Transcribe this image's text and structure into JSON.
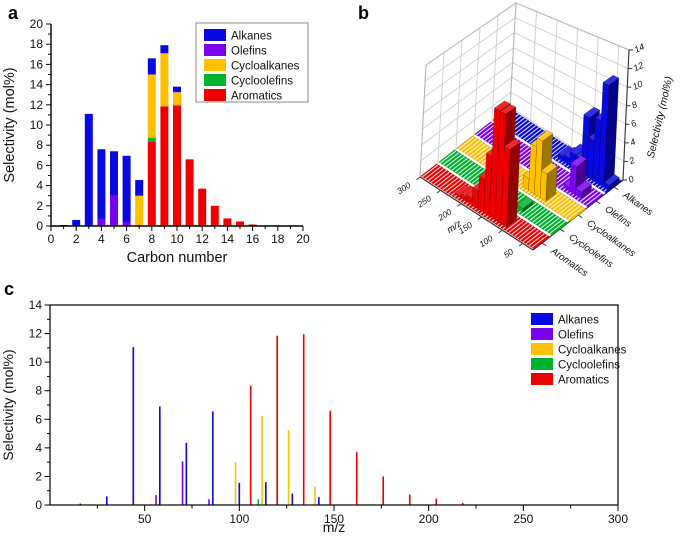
{
  "figure": {
    "panel_labels": [
      "a",
      "b",
      "c"
    ],
    "background": "#ffffff"
  },
  "colors": {
    "Alkanes": "#0808e0",
    "Olefins": "#7a00ee",
    "Cycloalkanes": "#ffc000",
    "Cycloolefins": "#00b22d",
    "Aromatics": "#ee0000"
  },
  "legend": {
    "items": [
      {
        "label": "Alkanes",
        "color": "#0808e0"
      },
      {
        "label": "Olefins",
        "color": "#7a00ee"
      },
      {
        "label": "Cycloalkanes",
        "color": "#ffc000"
      },
      {
        "label": "Cycloolefins",
        "color": "#00b22d"
      },
      {
        "label": "Aromatics",
        "color": "#ee0000"
      }
    ]
  },
  "chart_data": [
    {
      "id": "a",
      "type": "bar",
      "stacked": true,
      "xlabel": "Carbon number",
      "ylabel": "Selectivity (mol%)",
      "xlim": [
        0,
        20
      ],
      "ylim": [
        0,
        20
      ],
      "xtick_step": 2,
      "ytick_step": 2,
      "grid": false,
      "legend_position": "top-right-boxed",
      "stack_order_bottom_to_top": [
        "Aromatics",
        "Cycloolefins",
        "Cycloalkanes",
        "Olefins",
        "Alkanes"
      ],
      "columns": [
        {
          "x": 1,
          "stack": [
            [
              "Alkanes",
              0.1
            ]
          ]
        },
        {
          "x": 2,
          "stack": [
            [
              "Alkanes",
              0.6
            ]
          ]
        },
        {
          "x": 3,
          "stack": [
            [
              "Alkanes",
              11.1
            ]
          ]
        },
        {
          "x": 4,
          "stack": [
            [
              "Olefins",
              0.7
            ],
            [
              "Alkanes",
              6.9
            ]
          ]
        },
        {
          "x": 5,
          "stack": [
            [
              "Olefins",
              3.0
            ],
            [
              "Alkanes",
              4.4
            ]
          ]
        },
        {
          "x": 6,
          "stack": [
            [
              "Olefins",
              0.4
            ],
            [
              "Alkanes",
              6.55
            ]
          ]
        },
        {
          "x": 7,
          "stack": [
            [
              "Cycloalkanes",
              3.0
            ],
            [
              "Alkanes",
              1.55
            ]
          ]
        },
        {
          "x": 8,
          "stack": [
            [
              "Aromatics",
              8.35
            ],
            [
              "Cycloolefins",
              0.4
            ],
            [
              "Cycloalkanes",
              6.25
            ],
            [
              "Alkanes",
              1.6
            ]
          ]
        },
        {
          "x": 9,
          "stack": [
            [
              "Aromatics",
              11.85
            ],
            [
              "Cycloalkanes",
              5.25
            ],
            [
              "Alkanes",
              0.8
            ]
          ]
        },
        {
          "x": 10,
          "stack": [
            [
              "Aromatics",
              11.95
            ],
            [
              "Cycloalkanes",
              1.3
            ],
            [
              "Alkanes",
              0.55
            ]
          ]
        },
        {
          "x": 11,
          "stack": [
            [
              "Aromatics",
              6.6
            ]
          ]
        },
        {
          "x": 12,
          "stack": [
            [
              "Aromatics",
              3.7
            ]
          ]
        },
        {
          "x": 13,
          "stack": [
            [
              "Aromatics",
              2.0
            ]
          ]
        },
        {
          "x": 14,
          "stack": [
            [
              "Aromatics",
              0.75
            ]
          ]
        },
        {
          "x": 15,
          "stack": [
            [
              "Aromatics",
              0.45
            ]
          ]
        },
        {
          "x": 16,
          "stack": [
            [
              "Aromatics",
              0.15
            ]
          ]
        }
      ]
    },
    {
      "id": "b",
      "type": "bar3d",
      "xlabel": "m/z",
      "zlabel": "Selectivity (mol%)",
      "xlim": [
        25,
        300
      ],
      "xticks": [
        50,
        100,
        150,
        200,
        250,
        300
      ],
      "zlim": [
        0,
        14
      ],
      "zticks": [
        0,
        2,
        4,
        6,
        8,
        10,
        12,
        14
      ],
      "rows_front_to_back": [
        "Aromatics",
        "Cycloolefins",
        "Cycloalkanes",
        "Olefins",
        "Alkanes"
      ],
      "series": [
        {
          "name": "Aromatics",
          "points": [
            [
              106,
              8.35
            ],
            [
              120,
              11.85
            ],
            [
              134,
              11.95
            ],
            [
              148,
              6.6
            ],
            [
              162,
              3.7
            ],
            [
              176,
              2.0
            ],
            [
              190,
              0.75
            ],
            [
              204,
              0.45
            ],
            [
              218,
              0.15
            ]
          ]
        },
        {
          "name": "Cycloolefins",
          "points": [
            [
              110,
              0.4
            ]
          ]
        },
        {
          "name": "Cycloalkanes",
          "points": [
            [
              98,
              3.0
            ],
            [
              112,
              6.25
            ],
            [
              126,
              5.25
            ],
            [
              140,
              1.3
            ]
          ]
        },
        {
          "name": "Olefins",
          "points": [
            [
              56,
              0.7
            ],
            [
              70,
              3.05
            ],
            [
              84,
              0.4
            ]
          ]
        },
        {
          "name": "Alkanes",
          "points": [
            [
              16,
              0.1
            ],
            [
              30,
              0.6
            ],
            [
              44,
              11.05
            ],
            [
              58,
              6.9
            ],
            [
              72,
              4.35
            ],
            [
              86,
              6.55
            ],
            [
              100,
              1.55
            ],
            [
              114,
              1.6
            ],
            [
              128,
              0.8
            ],
            [
              142,
              0.55
            ]
          ]
        }
      ]
    },
    {
      "id": "c",
      "type": "stick",
      "xlabel": "m/z",
      "ylabel": "Selectivity (mol%)",
      "xlim": [
        0,
        300
      ],
      "ylim": [
        0,
        14
      ],
      "xticks": [
        50,
        100,
        150,
        200,
        250,
        300
      ],
      "ytick_step": 2,
      "grid": false,
      "legend_position": "top-right-unboxed",
      "series": [
        {
          "name": "Alkanes",
          "points": [
            [
              16,
              0.1
            ],
            [
              30,
              0.6
            ],
            [
              44,
              11.05
            ],
            [
              58,
              6.9
            ],
            [
              72,
              4.35
            ],
            [
              86,
              6.55
            ],
            [
              100,
              1.55
            ],
            [
              114,
              1.6
            ],
            [
              128,
              0.8
            ],
            [
              142,
              0.55
            ]
          ]
        },
        {
          "name": "Olefins",
          "points": [
            [
              56,
              0.7
            ],
            [
              70,
              3.05
            ],
            [
              84,
              0.4
            ]
          ]
        },
        {
          "name": "Cycloalkanes",
          "points": [
            [
              98,
              3.0
            ],
            [
              112,
              6.25
            ],
            [
              126,
              5.25
            ],
            [
              140,
              1.3
            ]
          ]
        },
        {
          "name": "Cycloolefins",
          "points": [
            [
              110,
              0.4
            ]
          ]
        },
        {
          "name": "Aromatics",
          "points": [
            [
              106,
              8.35
            ],
            [
              120,
              11.85
            ],
            [
              134,
              11.95
            ],
            [
              148,
              6.6
            ],
            [
              162,
              3.7
            ],
            [
              176,
              2.0
            ],
            [
              190,
              0.75
            ],
            [
              204,
              0.45
            ],
            [
              218,
              0.15
            ]
          ]
        }
      ]
    }
  ]
}
